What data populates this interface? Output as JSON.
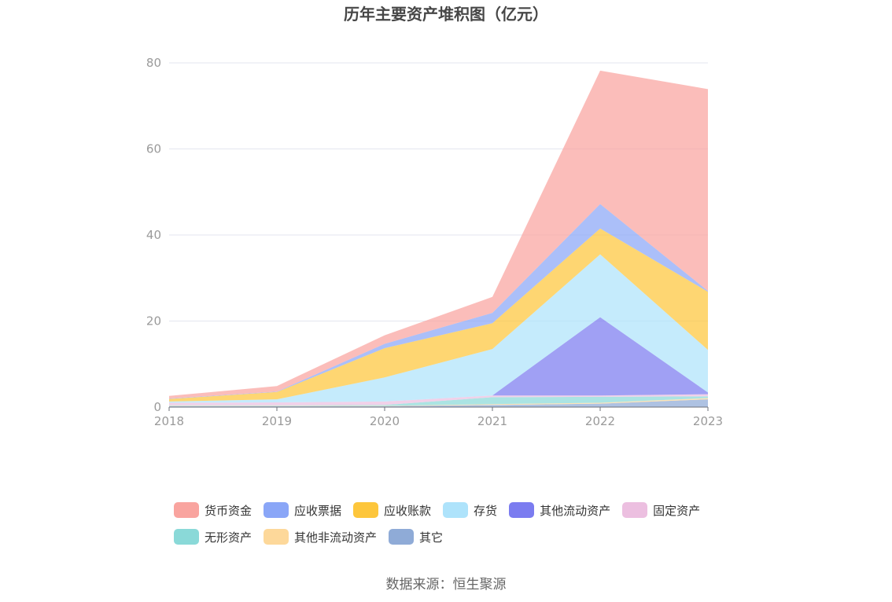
{
  "chart_data": {
    "type": "area",
    "stacked": true,
    "title": "历年主要资产堆积图（亿元）",
    "x": [
      "2018",
      "2019",
      "2020",
      "2021",
      "2022",
      "2023"
    ],
    "ylim": [
      0,
      80
    ],
    "yticks": [
      "0",
      "20",
      "40",
      "60",
      "80"
    ],
    "grid": true,
    "legend_position": "bottom",
    "series": [
      {
        "name": "其它",
        "color": "#8fabd7",
        "values": [
          0.2,
          0.2,
          0.2,
          0.5,
          0.8,
          1.8
        ]
      },
      {
        "name": "其他非流动资产",
        "color": "#fdd89a",
        "values": [
          0.1,
          0.1,
          0.1,
          0.2,
          0.2,
          0.3
        ]
      },
      {
        "name": "无形资产",
        "color": "#8ad9d8",
        "values": [
          0.1,
          0.1,
          0.2,
          1.6,
          1.4,
          0.4
        ]
      },
      {
        "name": "固定资产",
        "color": "#ecbfe0",
        "values": [
          0.6,
          0.7,
          0.8,
          0.4,
          0.3,
          0.5
        ]
      },
      {
        "name": "其他流动资产",
        "color": "#7b7cf0",
        "values": [
          0,
          0,
          0,
          0,
          18.2,
          0.4
        ]
      },
      {
        "name": "存货",
        "color": "#aee3fb",
        "values": [
          0.3,
          0.7,
          5.6,
          10.8,
          14.6,
          9.9
        ]
      },
      {
        "name": "应收账款",
        "color": "#fdc63c",
        "values": [
          0.6,
          1.7,
          6.8,
          6.0,
          6.0,
          13.5
        ]
      },
      {
        "name": "应收票据",
        "color": "#8aa6f7",
        "values": [
          0.1,
          0.1,
          1.0,
          2.4,
          5.7,
          0.2
        ]
      },
      {
        "name": "货币资金",
        "color": "#f9a49f",
        "values": [
          0.6,
          1.3,
          2.0,
          3.7,
          31.0,
          46.9
        ]
      }
    ],
    "legend_order": [
      "货币资金",
      "应收票据",
      "应收账款",
      "存货",
      "其他流动资产",
      "固定资产",
      "无形资产",
      "其他非流动资产",
      "其它"
    ],
    "source": "数据来源：恒生聚源"
  }
}
